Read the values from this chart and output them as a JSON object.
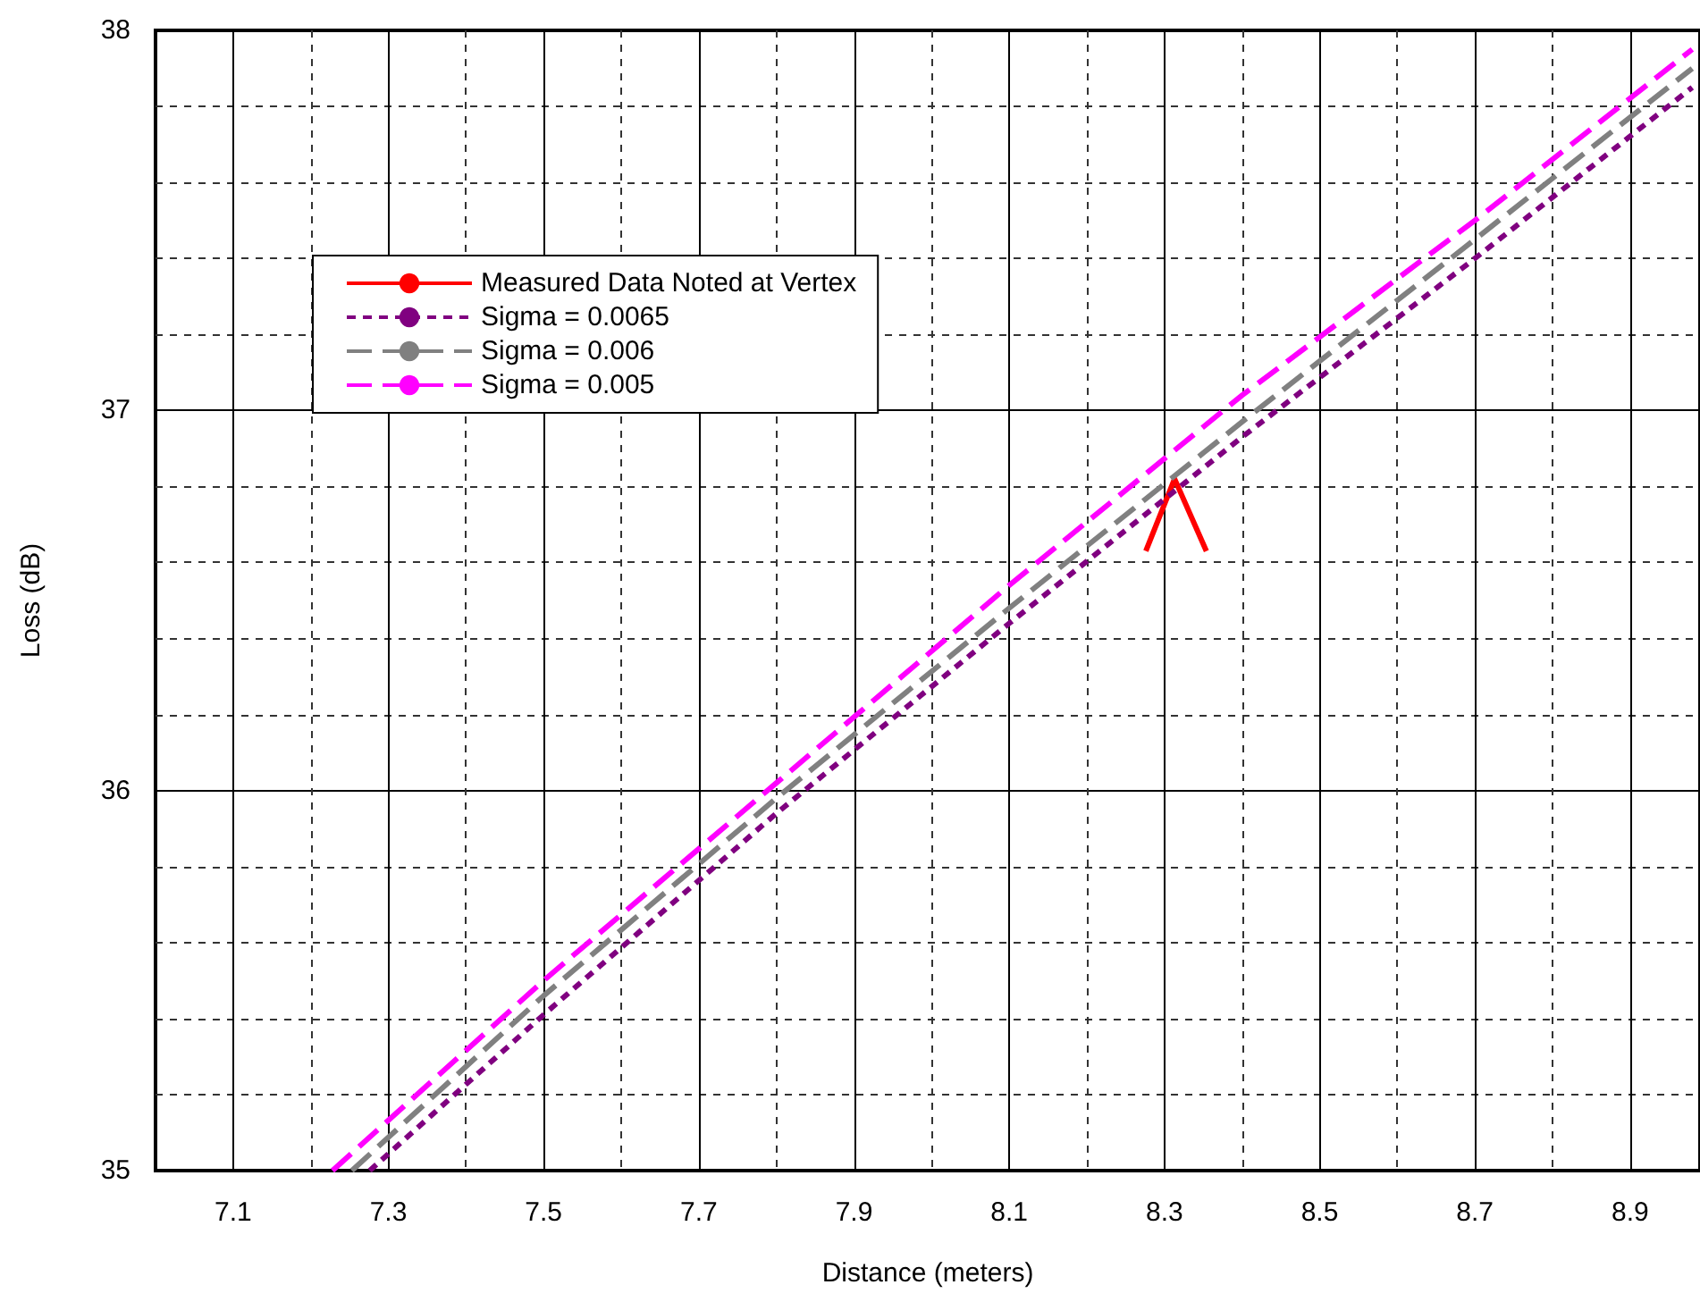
{
  "chart_data": {
    "type": "line",
    "xlabel": "Distance (meters)",
    "ylabel": "Loss (dB)",
    "xlim": [
      7.0,
      8.99
    ],
    "ylim": [
      35,
      38
    ],
    "xticks": [
      7.1,
      {
        "value": 7.2,
        "label": null
      },
      7.3,
      {
        "value": 7.4,
        "label": null
      },
      7.5,
      {
        "value": 7.6,
        "label": null
      },
      7.7,
      {
        "value": 7.8,
        "label": null
      },
      7.9,
      {
        "value": 8.0,
        "label": null
      },
      8.1,
      {
        "value": 8.2,
        "label": null
      },
      8.3,
      {
        "value": 8.4,
        "label": null
      },
      8.5,
      {
        "value": 8.6,
        "label": null
      },
      8.7,
      {
        "value": 8.8,
        "label": null
      },
      8.9
    ],
    "yticks": [
      35,
      {
        "value": 35.2,
        "label": null
      },
      {
        "value": 35.4,
        "label": null
      },
      {
        "value": 35.6,
        "label": null
      },
      {
        "value": 35.8,
        "label": null
      },
      36,
      {
        "value": 36.2,
        "label": null
      },
      {
        "value": 36.4,
        "label": null
      },
      {
        "value": 36.6,
        "label": null
      },
      {
        "value": 36.8,
        "label": null
      },
      37,
      {
        "value": 37.2,
        "label": null
      },
      {
        "value": 37.4,
        "label": null
      },
      {
        "value": 37.6,
        "label": null
      },
      {
        "value": 37.8,
        "label": null
      },
      38
    ],
    "grid": true,
    "legend": "top left",
    "marker": "none",
    "series": [
      {
        "name": "Measured Data Noted at Vertex",
        "color": "#ff0000",
        "line_style": "solid",
        "x": [
          8.276,
          8.313,
          8.354
        ],
        "values": [
          36.63,
          36.82,
          36.63
        ]
      },
      {
        "name": "Sigma = 0.0065",
        "color": "#800080",
        "line_style": "dotted",
        "x": [
          7.276,
          7.5,
          7.8,
          8.1,
          8.4,
          8.7,
          8.98
        ],
        "values": [
          35.0,
          35.41,
          35.94,
          36.44,
          36.93,
          37.4,
          37.85
        ]
      },
      {
        "name": "Sigma = 0.006",
        "color": "#808080",
        "line_style": "dashed",
        "x": [
          7.253,
          7.5,
          7.8,
          8.1,
          8.4,
          8.7,
          8.98
        ],
        "values": [
          35.0,
          35.46,
          35.98,
          36.48,
          36.97,
          37.45,
          37.9
        ]
      },
      {
        "name": "Sigma = 0.005",
        "color": "#ff00ff",
        "line_style": "dashed",
        "x": [
          7.228,
          7.5,
          7.8,
          8.1,
          8.4,
          8.7,
          8.98
        ],
        "values": [
          35.0,
          35.5,
          36.02,
          36.54,
          37.04,
          37.5,
          37.95
        ]
      }
    ]
  }
}
